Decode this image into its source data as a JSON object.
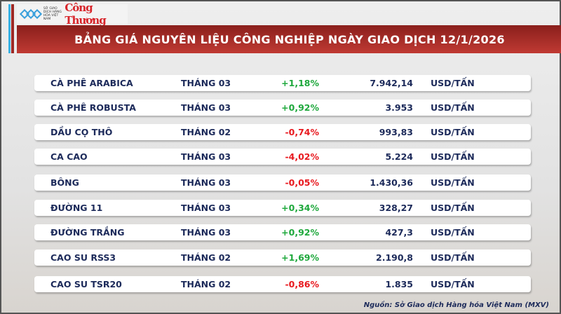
{
  "header": {
    "logo_text": "SỞ GIAO DỊCH HÀNG HÓA VIỆT NAM",
    "brand": "Công Thương",
    "title": "BẢNG GIÁ NGUYÊN LIỆU CÔNG NGHIỆP NGÀY GIAO DỊCH 12/1/2026"
  },
  "colors": {
    "up": "#1ea83c",
    "down": "#e8191f",
    "banner": "#b3322c",
    "text": "#1c2a5a"
  },
  "rows": [
    {
      "name": "CÀ PHÊ ARABICA",
      "month": "THÁNG 03",
      "change": "+1,18%",
      "price": "7.942,14",
      "unit": "USD/TẤN"
    },
    {
      "name": "CÀ PHÊ ROBUSTA",
      "month": "THÁNG 03",
      "change": "+0,92%",
      "price": "3.953",
      "unit": "USD/TẤN"
    },
    {
      "name": "DẦU CỌ THÔ",
      "month": "THÁNG 02",
      "change": "-0,74%",
      "price": "993,83",
      "unit": "USD/TẤN"
    },
    {
      "name": "CA CAO",
      "month": "THÁNG 03",
      "change": "-4,02%",
      "price": "5.224",
      "unit": "USD/TẤN"
    },
    {
      "name": "BÔNG",
      "month": "THÁNG 03",
      "change": "-0,05%",
      "price": "1.430,36",
      "unit": "USD/TẤN"
    },
    {
      "name": "ĐƯỜNG 11",
      "month": "THÁNG 03",
      "change": "+0,34%",
      "price": "328,27",
      "unit": "USD/TẤN"
    },
    {
      "name": "ĐƯỜNG TRẮNG",
      "month": "THÁNG 03",
      "change": "+0,92%",
      "price": "427,3",
      "unit": "USD/TẤN"
    },
    {
      "name": "CAO SU RSS3",
      "month": "THÁNG 02",
      "change": "+1,69%",
      "price": "2.190,8",
      "unit": "USD/TẤN"
    },
    {
      "name": "CAO SU TSR20",
      "month": "THÁNG 02",
      "change": "-0,86%",
      "price": "1.835",
      "unit": "USD/TẤN"
    }
  ],
  "source": "Nguồn: Sở Giao dịch Hàng hóa Việt Nam (MXV)"
}
